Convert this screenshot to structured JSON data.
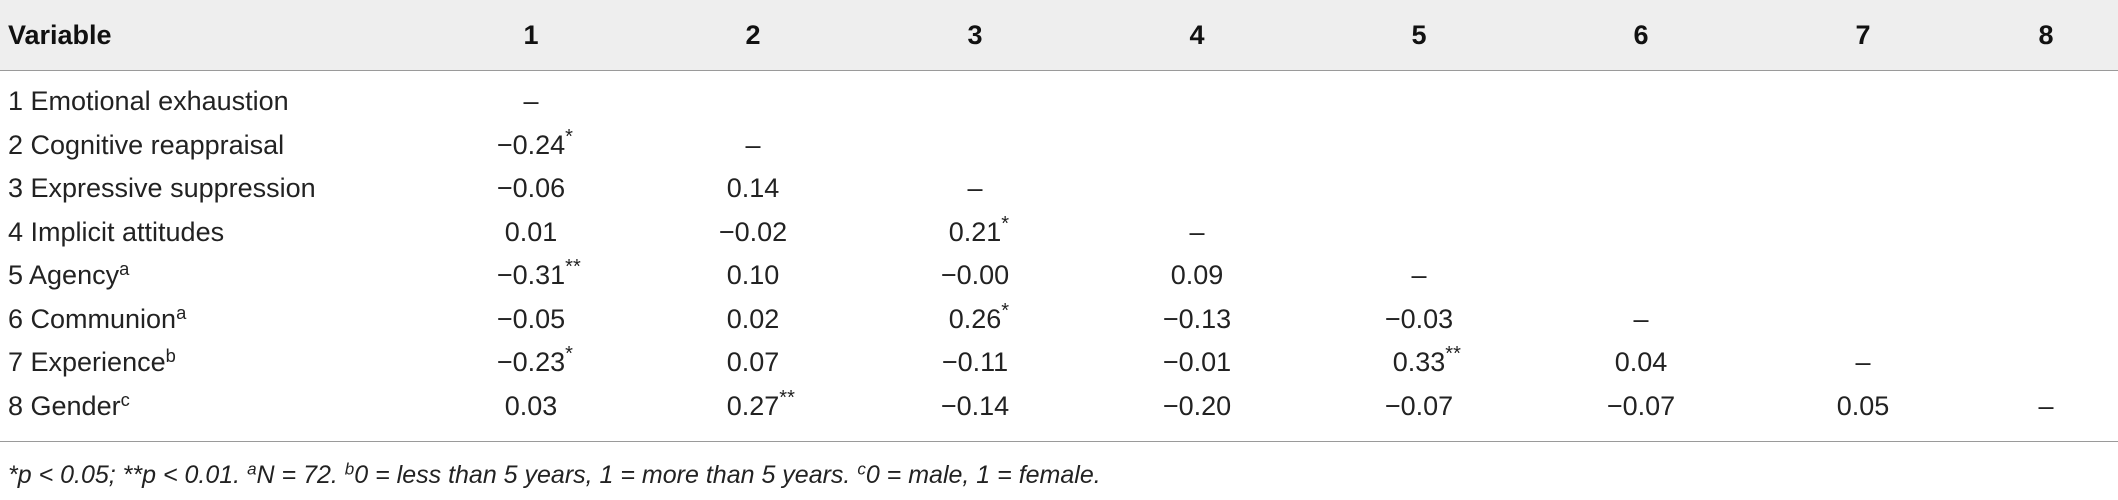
{
  "table": {
    "headers": [
      "Variable",
      "1",
      "2",
      "3",
      "4",
      "5",
      "6",
      "7",
      "8"
    ],
    "rows": [
      {
        "label": "1 Emotional exhaustion",
        "sup": "",
        "cells": [
          {
            "v": "–",
            "s": ""
          },
          {
            "v": "",
            "s": ""
          },
          {
            "v": "",
            "s": ""
          },
          {
            "v": "",
            "s": ""
          },
          {
            "v": "",
            "s": ""
          },
          {
            "v": "",
            "s": ""
          },
          {
            "v": "",
            "s": ""
          },
          {
            "v": "",
            "s": ""
          }
        ]
      },
      {
        "label": "2 Cognitive reappraisal",
        "sup": "",
        "cells": [
          {
            "v": "−0.24",
            "s": "*"
          },
          {
            "v": "–",
            "s": ""
          },
          {
            "v": "",
            "s": ""
          },
          {
            "v": "",
            "s": ""
          },
          {
            "v": "",
            "s": ""
          },
          {
            "v": "",
            "s": ""
          },
          {
            "v": "",
            "s": ""
          },
          {
            "v": "",
            "s": ""
          }
        ]
      },
      {
        "label": "3 Expressive suppression",
        "sup": "",
        "cells": [
          {
            "v": "−0.06",
            "s": ""
          },
          {
            "v": "0.14",
            "s": ""
          },
          {
            "v": "–",
            "s": ""
          },
          {
            "v": "",
            "s": ""
          },
          {
            "v": "",
            "s": ""
          },
          {
            "v": "",
            "s": ""
          },
          {
            "v": "",
            "s": ""
          },
          {
            "v": "",
            "s": ""
          }
        ]
      },
      {
        "label": "4 Implicit attitudes",
        "sup": "",
        "cells": [
          {
            "v": "0.01",
            "s": ""
          },
          {
            "v": "−0.02",
            "s": ""
          },
          {
            "v": "0.21",
            "s": "*"
          },
          {
            "v": "–",
            "s": ""
          },
          {
            "v": "",
            "s": ""
          },
          {
            "v": "",
            "s": ""
          },
          {
            "v": "",
            "s": ""
          },
          {
            "v": "",
            "s": ""
          }
        ]
      },
      {
        "label": "5 Agency",
        "sup": "a",
        "cells": [
          {
            "v": "−0.31",
            "s": "**"
          },
          {
            "v": "0.10",
            "s": ""
          },
          {
            "v": "−0.00",
            "s": ""
          },
          {
            "v": "0.09",
            "s": ""
          },
          {
            "v": "–",
            "s": ""
          },
          {
            "v": "",
            "s": ""
          },
          {
            "v": "",
            "s": ""
          },
          {
            "v": "",
            "s": ""
          }
        ]
      },
      {
        "label": "6 Communion",
        "sup": "a",
        "cells": [
          {
            "v": "−0.05",
            "s": ""
          },
          {
            "v": "0.02",
            "s": ""
          },
          {
            "v": "0.26",
            "s": "*"
          },
          {
            "v": "−0.13",
            "s": ""
          },
          {
            "v": "−0.03",
            "s": ""
          },
          {
            "v": "–",
            "s": ""
          },
          {
            "v": "",
            "s": ""
          },
          {
            "v": "",
            "s": ""
          }
        ]
      },
      {
        "label": "7 Experience",
        "sup": "b",
        "cells": [
          {
            "v": "−0.23",
            "s": "*"
          },
          {
            "v": "0.07",
            "s": ""
          },
          {
            "v": "−0.11",
            "s": ""
          },
          {
            "v": "−0.01",
            "s": ""
          },
          {
            "v": "0.33",
            "s": "**"
          },
          {
            "v": "0.04",
            "s": ""
          },
          {
            "v": "–",
            "s": ""
          },
          {
            "v": "",
            "s": ""
          }
        ]
      },
      {
        "label": "8 Gender",
        "sup": "c",
        "cells": [
          {
            "v": "0.03",
            "s": ""
          },
          {
            "v": "0.27",
            "s": "**"
          },
          {
            "v": "−0.14",
            "s": ""
          },
          {
            "v": "−0.20",
            "s": ""
          },
          {
            "v": "−0.07",
            "s": ""
          },
          {
            "v": "−0.07",
            "s": ""
          },
          {
            "v": "0.05",
            "s": ""
          },
          {
            "v": "–",
            "s": ""
          }
        ]
      }
    ]
  },
  "note": {
    "p1": "*p < 0.05; **p < 0.01. ",
    "sup_a": "a",
    "p2": "N = 72. ",
    "sup_b": "b",
    "p3": "0 = less than 5 years, 1 = more than 5 years. ",
    "sup_c": "c",
    "p4": "0 = male, 1 = female."
  }
}
